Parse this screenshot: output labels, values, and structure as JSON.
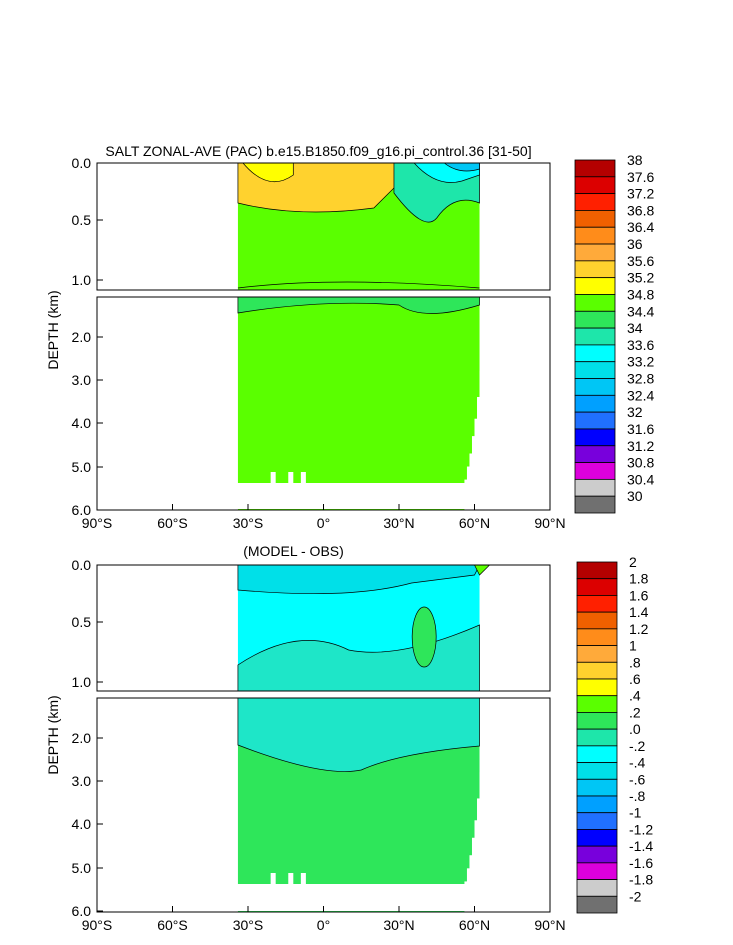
{
  "chart_data": [
    {
      "type": "contour",
      "title": "SALT ZONAL-AVE (PAC) b.e15.B1850.f09_g16.pi_control.36 [31-50]",
      "ylabel": "DEPTH (km)",
      "x_ticks": [
        "90°S",
        "60°S",
        "30°S",
        "0°",
        "30°N",
        "60°N",
        "90°N"
      ],
      "x_range": [
        -90,
        90
      ],
      "y_ticks_upper": [
        "0.0",
        "0.5",
        "1.0"
      ],
      "y_ticks_lower": [
        "2.0",
        "3.0",
        "4.0",
        "5.0",
        "6.0"
      ],
      "y_range_upper_km": [
        0,
        1.1
      ],
      "y_range_lower_km": [
        1.1,
        6.0
      ],
      "colorbar_labels": [
        "38",
        "37.6",
        "37.2",
        "36.8",
        "36.4",
        "36",
        "35.6",
        "35.2",
        "34.8",
        "34.4",
        "34",
        "33.6",
        "33.2",
        "32.8",
        "32.4",
        "32",
        "31.6",
        "31.2",
        "30.8",
        "30.4",
        "30"
      ],
      "colorbar_colors": [
        "#b40000",
        "#dc0000",
        "#ff2000",
        "#f06000",
        "#ff8c1a",
        "#ffaa3a",
        "#ffd22e",
        "#ffff00",
        "#5aff00",
        "#2ee65a",
        "#1ee6aa",
        "#00ffff",
        "#00e0e8",
        "#00c6f5",
        "#00a0ff",
        "#2070ff",
        "#0000ff",
        "#7800dc",
        "#dc00dc",
        "#cccccc",
        "#707070"
      ]
    },
    {
      "type": "contour",
      "title": "(MODEL - OBS)",
      "ylabel": "DEPTH (km)",
      "x_ticks": [
        "90°S",
        "60°S",
        "30°S",
        "0°",
        "30°N",
        "60°N",
        "90°N"
      ],
      "x_range": [
        -90,
        90
      ],
      "y_ticks_upper": [
        "0.0",
        "0.5",
        "1.0"
      ],
      "y_ticks_lower": [
        "2.0",
        "3.0",
        "4.0",
        "5.0",
        "6.0"
      ],
      "y_range_upper_km": [
        0,
        1.1
      ],
      "y_range_lower_km": [
        1.1,
        6.0
      ],
      "colorbar_labels": [
        "2",
        "1.8",
        "1.6",
        "1.4",
        "1.2",
        "1",
        ".8",
        ".6",
        ".4",
        ".2",
        ".0",
        "-.2",
        "-.4",
        "-.6",
        "-.8",
        "-1",
        "-1.2",
        "-1.4",
        "-1.6",
        "-1.8",
        "-2"
      ],
      "colorbar_colors": [
        "#b40000",
        "#dc0000",
        "#ff2000",
        "#f06000",
        "#ff8c1a",
        "#ffaa3a",
        "#ffd22e",
        "#ffff00",
        "#5aff00",
        "#2ee65a",
        "#1ee6aa",
        "#00ffff",
        "#00e0e8",
        "#00c6f5",
        "#00a0ff",
        "#2070ff",
        "#0000ff",
        "#7800dc",
        "#dc00dc",
        "#cccccc",
        "#707070"
      ]
    }
  ]
}
